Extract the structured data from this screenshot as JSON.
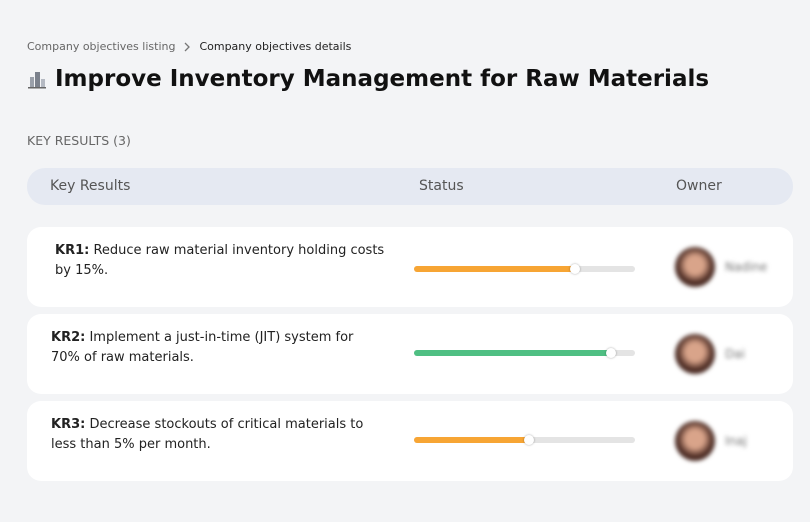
{
  "breadcrumb": {
    "parent": "Company objectives listing",
    "current": "Company objectives details"
  },
  "title": "Improve Inventory Management for Raw Materials",
  "section_label": "KEY RESULTS (3)",
  "table": {
    "headers": [
      "Key Results",
      "Status",
      "Owner"
    ],
    "rows": [
      {
        "key": "KR1:",
        "text": "Reduce raw material inventory holding costs by 15%.",
        "progress": 73,
        "color": "#f7a534",
        "owner": "Nadine"
      },
      {
        "key": "KR2:",
        "text": "Implement a just-in-time (JIT) system for 70% of raw materials.",
        "progress": 89,
        "color": "#4fbf83",
        "owner": "Dai"
      },
      {
        "key": "KR3:",
        "text": "Decrease stockouts of critical materials to less than 5% per month.",
        "progress": 52,
        "color": "#f7a534",
        "owner": "Inaj"
      }
    ]
  }
}
